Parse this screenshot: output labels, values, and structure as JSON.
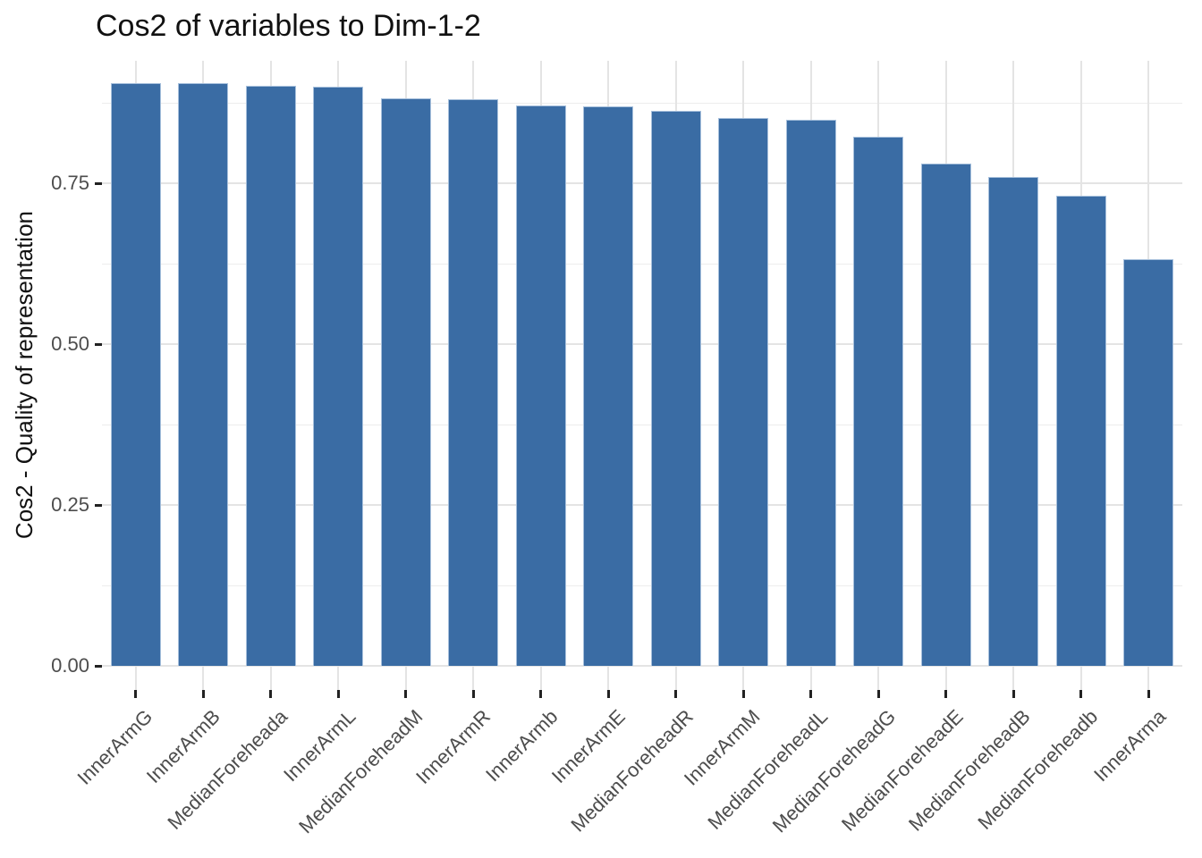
{
  "chart_data": {
    "type": "bar",
    "title": "Cos2 of variables to Dim-1-2",
    "xlabel": "",
    "ylabel": "Cos2 - Quality of representation",
    "categories": [
      "InnerArmG",
      "InnerArmB",
      "MedianForeheada",
      "InnerArmL",
      "MedianForeheadM",
      "InnerArmR",
      "InnerArmb",
      "InnerArmE",
      "MedianForeheadR",
      "InnerArmM",
      "MedianForeheadL",
      "MedianForeheadG",
      "MedianForeheadE",
      "MedianForeheadB",
      "MedianForeheadb",
      "InnerArma"
    ],
    "values": [
      0.906,
      0.905,
      0.902,
      0.9,
      0.882,
      0.881,
      0.871,
      0.869,
      0.862,
      0.852,
      0.848,
      0.822,
      0.781,
      0.76,
      0.731,
      0.632
    ],
    "y_ticks": [
      {
        "value": 0.0,
        "label": "0.00"
      },
      {
        "value": 0.25,
        "label": "0.25"
      },
      {
        "value": 0.5,
        "label": "0.50"
      },
      {
        "value": 0.75,
        "label": "0.75"
      }
    ],
    "y_minor_gridlines": [
      0.125,
      0.375,
      0.625,
      0.875
    ],
    "ylim": [
      0,
      0.94
    ],
    "x_tick_label_angle": 45,
    "grid": true,
    "legend_position": "none",
    "colors": {
      "bar_fill": "#3A6CA4",
      "bar_edge": "#A7C0DC",
      "grid_major": "#E4E4E4",
      "grid_minor": "#EDEDED",
      "tick_mark": "#222222",
      "tick_label": "#4D4D4D",
      "title_text": "#111111",
      "background": "#FFFFFF"
    }
  }
}
